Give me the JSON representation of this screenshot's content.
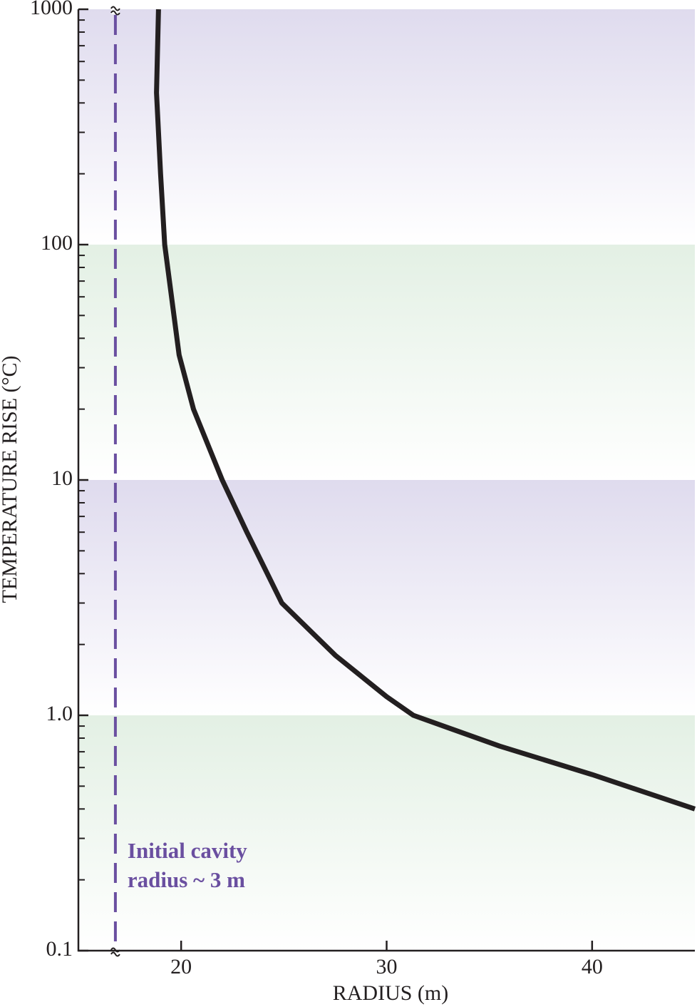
{
  "chart_data": {
    "type": "line",
    "xlabel": "RADIUS (m)",
    "ylabel": "TEMPERATURE RISE (°C)",
    "x": [
      18.9,
      18.8,
      19.0,
      19.2,
      19.9,
      20.6,
      22.0,
      23.2,
      24.9,
      27.5,
      30.0,
      31.3,
      35.5,
      40.0,
      45.0
    ],
    "series": [
      {
        "color": "#231f20",
        "values": [
          1000,
          442,
          200,
          100,
          34,
          20,
          10,
          6,
          3.0,
          1.8,
          1.2,
          1.0,
          0.74,
          0.56,
          0.4
        ]
      }
    ],
    "xlim": [
      15,
      45
    ],
    "xticks": [
      20,
      30,
      40
    ],
    "ylim": [
      0.1,
      1000
    ],
    "log_y": true,
    "yticks": [
      0.1,
      {
        "value": 1,
        "label": "1.0"
      },
      10,
      100,
      1000
    ],
    "yminorticks": [
      0.2,
      0.3,
      0.4,
      0.5,
      0.6,
      0.7,
      0.8,
      0.9,
      2,
      3,
      4,
      5,
      6,
      7,
      8,
      9,
      20,
      30,
      40,
      50,
      60,
      70,
      80,
      90,
      200,
      300,
      400,
      500,
      600,
      700,
      800,
      900
    ],
    "bands": [
      {
        "from": 0.1,
        "to": 1,
        "color": "#e3f0e4"
      },
      {
        "from": 1,
        "to": 10,
        "color": "#dfdbee"
      },
      {
        "from": 10,
        "to": 100,
        "color": "#e3f0e4"
      },
      {
        "from": 100,
        "to": 1000,
        "color": "#dfdbee"
      }
    ],
    "reference_line": {
      "x": 16.8,
      "color": "#6a4fa0",
      "label": [
        "Initial cavity",
        "radius ~ 3 m"
      ]
    }
  }
}
